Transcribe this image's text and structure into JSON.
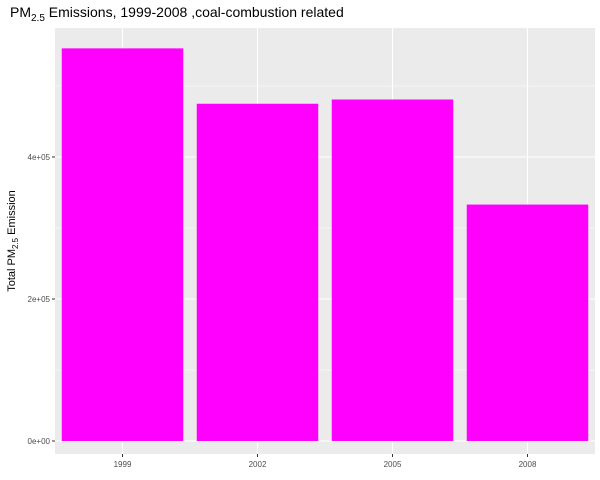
{
  "chart_data": {
    "type": "bar",
    "title": {
      "prefix": "PM",
      "subscript": "2.5",
      "suffix": " Emissions, 1999-2008 ,coal-combustion related"
    },
    "xlabel": "",
    "ylabel": {
      "prefix": "Total PM",
      "subscript": "2.5",
      "suffix": " Emission"
    },
    "categories": [
      "1999",
      "2002",
      "2005",
      "2008"
    ],
    "values": [
      553000,
      475000,
      481000,
      333000
    ],
    "ylim": [
      0,
      580000
    ],
    "yticks": [
      0,
      200000,
      400000
    ],
    "ytick_labels": [
      "0e+00",
      "2e+05",
      "4e+05"
    ],
    "bar_color": "#ff00ff",
    "panel_background": "#ebebeb",
    "grid_color": "#ffffff",
    "grid": true,
    "legend": "none"
  }
}
